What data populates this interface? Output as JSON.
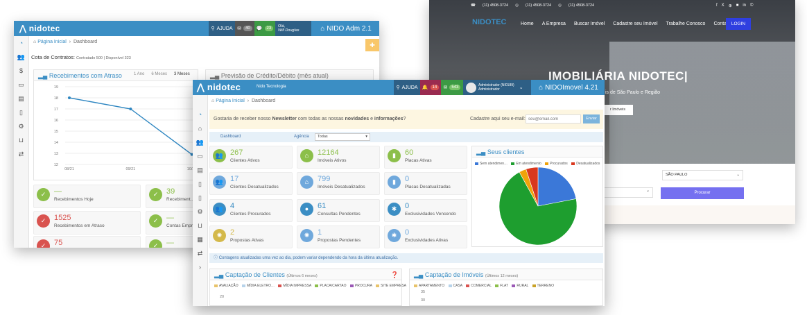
{
  "back": {
    "logo": "nidotec",
    "ajuda": "AJUDA",
    "msg_count": "40",
    "chat_count": "23",
    "user_greeting": "Olá,",
    "user_name": "Will Douglas",
    "app_title": "NIDO Adm 2.1",
    "breadcrumb": [
      "Página Inicial",
      "Dashboard"
    ],
    "cota_label": "Cota de Contratos:",
    "cota_detail": "Contratado 500 | Disponível 323",
    "panel1_title": "Recebimentos com Atraso",
    "panel1_tabs": [
      "1 Ano",
      "6 Meses",
      "3 Meses"
    ],
    "panel2_title": "Previsão de Crédito/Débito (mês atual)",
    "chart_y_ticks": [
      "19",
      "18",
      "17",
      "16",
      "15",
      "14",
      "13",
      "12"
    ],
    "chart_x_ticks": [
      "08/21",
      "09/21",
      "10/21"
    ],
    "tiles": [
      {
        "value": "—",
        "label": "Recebimentos Hoje",
        "color": "#8cbf4a"
      },
      {
        "value": "39",
        "label": "Recebiment…",
        "color": "#8cbf4a"
      },
      {
        "value": "1525",
        "label": "Recebimentos em Atraso",
        "color": "#d9534f"
      },
      {
        "value": "—",
        "label": "Contas Empre…",
        "color": "#8cbf4a"
      },
      {
        "value": "75",
        "label": "",
        "color": "#d9534f"
      },
      {
        "value": "—",
        "label": "",
        "color": "#8cbf4a"
      }
    ]
  },
  "site": {
    "contacts": [
      "(11) 4508-3724",
      "(11) 4508-3724",
      "(11) 4508-3724"
    ],
    "social": [
      "f",
      "X",
      "⊕",
      "■",
      "in",
      "©"
    ],
    "logo": "NIDOTEC",
    "nav": [
      "Home",
      "A Empresa",
      "Buscar Imóvel",
      "Cadastre seu Imóvel",
      "Trabalhe Conosco",
      "Contato"
    ],
    "login": "LOGIN",
    "hero_title": "IMOBILIÁRIA NIDOTEC|",
    "hero_sub": "is de São Paulo e Região",
    "hero_btn": "r Imóveis",
    "select_city": "SÃO PAULO",
    "search_btn": "Procurar"
  },
  "front": {
    "logo": "nidotec",
    "company": "Nido Tecnologia",
    "ajuda": "AJUDA",
    "bell_count": "14",
    "msg_count": "543",
    "user_name": "Administrador (NI0189)",
    "user_role": "Administrador",
    "app_title": "NIDOImovel 4.21",
    "breadcrumb": [
      "Página Inicial",
      "Dashboard"
    ],
    "newsletter_pre": "Gostaria de receber nosso ",
    "newsletter_b1": "Newsletter",
    "newsletter_mid": " com todas as nossas ",
    "newsletter_b2": "novidades",
    "newsletter_and": " e ",
    "newsletter_b3": "informações",
    "newsletter_end": "?",
    "email_label": "Cadastre aqui seu e-mail:",
    "email_placeholder": "seu@email.com",
    "email_btn": "Enviar",
    "filter_tab": "Dashboard",
    "agency_label": "Agência",
    "agency_value": "Todas",
    "tiles": [
      {
        "value": "267",
        "label": "Clientes Ativos",
        "color": "#8cbf4a",
        "icon": "users-icon",
        "glyph": "👥"
      },
      {
        "value": "12164",
        "label": "Imóveis Ativos",
        "color": "#8cbf4a",
        "icon": "house-icon",
        "glyph": "⌂"
      },
      {
        "value": "60",
        "label": "Placas Ativas",
        "color": "#8cbf4a",
        "icon": "bookmark-icon",
        "glyph": "▮"
      },
      {
        "value": "17",
        "label": "Clientes Desatualizados",
        "color": "#6fa8dc",
        "icon": "users-icon",
        "glyph": "👥"
      },
      {
        "value": "799",
        "label": "Imóveis Desatualizados",
        "color": "#6fa8dc",
        "icon": "house-icon",
        "glyph": "⌂"
      },
      {
        "value": "0",
        "label": "Placas Desatualizadas",
        "color": "#6fa8dc",
        "icon": "bookmark-icon",
        "glyph": "▮"
      },
      {
        "value": "4",
        "label": "Clientes Procurados",
        "color": "#3b8ec4",
        "icon": "users-icon",
        "glyph": "👥"
      },
      {
        "value": "61",
        "label": "Consultas Pendentes",
        "color": "#3b8ec4",
        "icon": "user-icon",
        "glyph": "●"
      },
      {
        "value": "0",
        "label": "Exclusividades Vencendo",
        "color": "#3b8ec4",
        "icon": "asterisk-icon",
        "glyph": "✱"
      },
      {
        "value": "2",
        "label": "Propostas Ativas",
        "color": "#d4b94a",
        "icon": "gear-icon",
        "glyph": "✺"
      },
      {
        "value": "1",
        "label": "Propostas Pendentes",
        "color": "#6fa8dc",
        "icon": "gear-icon",
        "glyph": "✺"
      },
      {
        "value": "0",
        "label": "Exclusividades Ativas",
        "color": "#6fa8dc",
        "icon": "asterisk-icon",
        "glyph": "✱"
      }
    ],
    "clients_title": "Seus clientes",
    "clients_legend": [
      "Sem atendimen…",
      "Em atendimento",
      "Procurados",
      "Desatualizados"
    ],
    "info_note": "Contagens atualizadas uma vez ao dia, podem variar dependendo da hora da última atualização.",
    "capt_clients_title": "Captação de Clientes",
    "capt_clients_period": "(Últimos 6 meses)",
    "capt_clients_legend": [
      "AVALIAÇÃO",
      "MÍDIA ELETRO…",
      "MÍDIA IMPRESSA",
      "PLACA/CARTAO",
      "PROCURA",
      "SITE EMPRESA"
    ],
    "capt_clients_tick": "20",
    "capt_imoveis_title": "Captação de Imóveis",
    "capt_imoveis_period": "(Últimos 12 meses)",
    "capt_imoveis_legend": [
      "APARTAMENTO",
      "CASA",
      "COMERCIAL",
      "FLAT",
      "RURAL",
      "TERRENO"
    ],
    "capt_imoveis_ticks": [
      "35",
      "30"
    ]
  },
  "chart_data": [
    {
      "type": "line",
      "title": "Recebimentos com Atraso",
      "x": [
        "08/21",
        "09/21",
        "10/21"
      ],
      "series": [
        {
          "values": [
            18,
            17,
            12.9
          ]
        }
      ],
      "ylim": [
        12,
        19
      ],
      "color": "#2e86c1"
    },
    {
      "type": "pie",
      "title": "Seus clientes",
      "labels": [
        "Sem atendimen…",
        "Em atendimento",
        "Procurados",
        "Desatualizados"
      ],
      "values": [
        22,
        70,
        3,
        5
      ],
      "colors": [
        "#3b78d8",
        "#1e9e2f",
        "#f0a30a",
        "#d9381e"
      ]
    }
  ]
}
